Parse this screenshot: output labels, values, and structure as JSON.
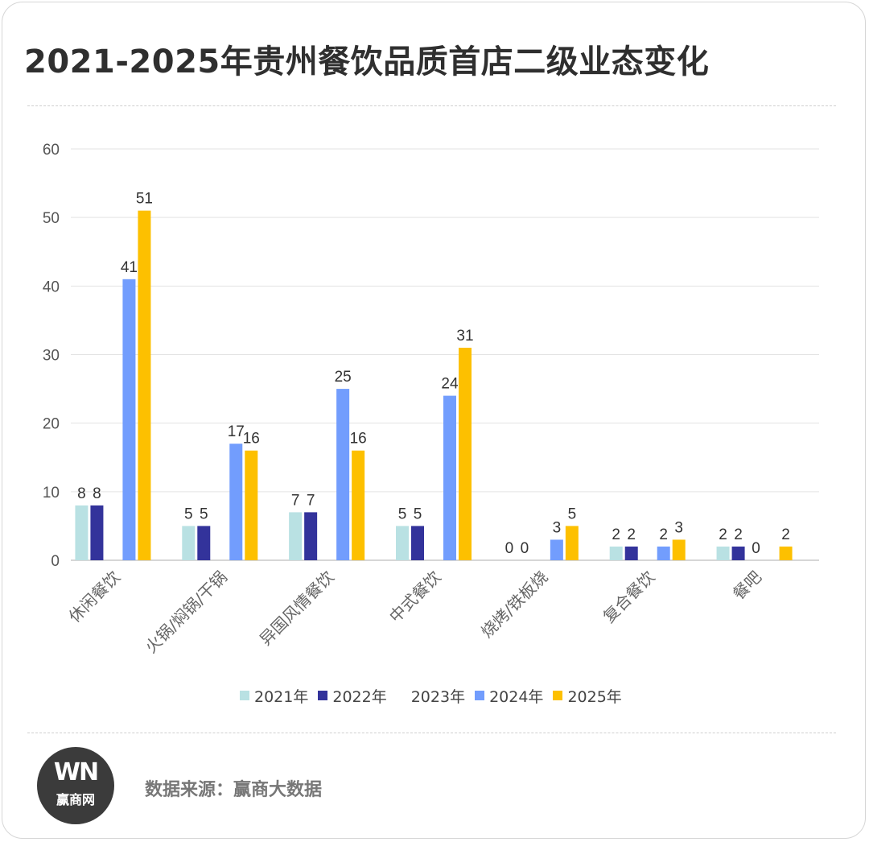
{
  "page": {
    "title": "2021-2025年贵州餐饮品质首店二级业态变化",
    "source_label": "数据来源：",
    "source": "赢商大数据",
    "logo_mark": "WN",
    "logo_text": "赢商网",
    "logo_icon": "winshang-logo-icon"
  },
  "chart_data": {
    "type": "bar",
    "title": "2021-2025年贵州餐饮品质首店二级业态变化",
    "xlabel": "",
    "ylabel": "",
    "ylim": [
      0,
      60
    ],
    "yticks": [
      0,
      10,
      20,
      30,
      40,
      50,
      60
    ],
    "grid": true,
    "legend_position": "bottom",
    "categories": [
      "休闲餐饮",
      "火锅/焖锅/干锅",
      "异国风情餐饮",
      "中式餐饮",
      "烧烤/铁板烧",
      "复合餐饮",
      "餐吧"
    ],
    "series": [
      {
        "name": "2021年",
        "color": "#b9e1e3",
        "values": [
          8,
          5,
          7,
          5,
          0,
          2,
          2
        ]
      },
      {
        "name": "2022年",
        "color": "#33339b",
        "values": [
          8,
          5,
          7,
          5,
          0,
          2,
          2
        ]
      },
      {
        "name": "2023年",
        "color": "#ffffff",
        "values": [
          null,
          null,
          null,
          null,
          null,
          null,
          0
        ]
      },
      {
        "name": "2024年",
        "color": "#729dfd",
        "values": [
          41,
          17,
          25,
          24,
          3,
          2,
          null
        ]
      },
      {
        "name": "2025年",
        "color": "#fdc000",
        "values": [
          51,
          16,
          16,
          31,
          5,
          3,
          2
        ]
      }
    ]
  }
}
